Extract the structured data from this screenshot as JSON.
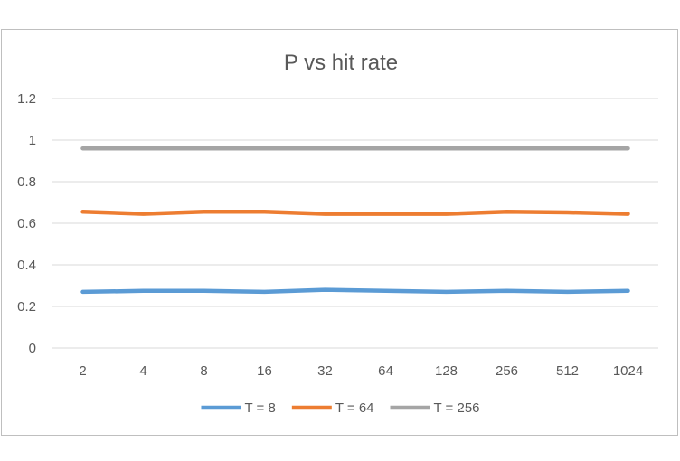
{
  "chart_data": {
    "type": "line",
    "title": "P vs hit rate",
    "xlabel": "",
    "ylabel": "",
    "categories": [
      "2",
      "4",
      "8",
      "16",
      "32",
      "64",
      "128",
      "256",
      "512",
      "1024"
    ],
    "y_ticks": [
      "0",
      "0.2",
      "0.4",
      "0.6",
      "0.8",
      "1",
      "1.2"
    ],
    "ylim": [
      0,
      1.2
    ],
    "grid": true,
    "legend_position": "bottom",
    "series": [
      {
        "name": "T = 8",
        "color": "#5b9bd5",
        "values": [
          0.27,
          0.275,
          0.275,
          0.27,
          0.28,
          0.275,
          0.27,
          0.275,
          0.27,
          0.275
        ]
      },
      {
        "name": "T = 64",
        "color": "#ed7d31",
        "values": [
          0.655,
          0.645,
          0.655,
          0.655,
          0.645,
          0.645,
          0.645,
          0.655,
          0.652,
          0.645
        ]
      },
      {
        "name": "T = 256",
        "color": "#a5a5a5",
        "values": [
          0.96,
          0.96,
          0.96,
          0.96,
          0.96,
          0.96,
          0.96,
          0.96,
          0.96,
          0.96
        ]
      }
    ]
  }
}
